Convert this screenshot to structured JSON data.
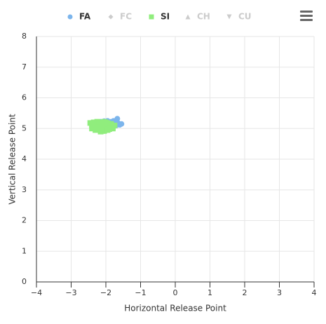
{
  "chart_data": {
    "type": "scatter",
    "x_label": "Horizontal Release Point",
    "y_label": "Vertical Release Point",
    "xlim": [
      -4,
      4
    ],
    "xticks": [
      {
        "value": -4,
        "label": "−4"
      },
      {
        "value": -3,
        "label": "−3"
      },
      {
        "value": -2,
        "label": "−2"
      },
      {
        "value": -1,
        "label": "−1"
      },
      0,
      1,
      2,
      3,
      4
    ],
    "ylim": [
      0,
      8
    ],
    "yticks": [
      0,
      1,
      2,
      3,
      4,
      5,
      6,
      7,
      8
    ],
    "grid": true,
    "series": [
      {
        "name": "FA",
        "color": "#7cb5ec",
        "symbol": "circle",
        "visible": true,
        "x": [
          -1.67,
          -1.55,
          -1.6,
          -1.75,
          -1.85,
          -1.95,
          -2.05,
          -2.15,
          -2.25,
          -2.35,
          -1.7,
          -1.8,
          -1.9,
          -2.0,
          -2.1,
          -2.2,
          -2.3,
          -1.65,
          -2.4,
          -1.78
        ],
        "values": [
          5.32,
          5.15,
          5.12,
          5.2,
          5.22,
          5.25,
          5.24,
          5.22,
          5.2,
          5.18,
          5.1,
          5.08,
          5.05,
          5.02,
          5.0,
          5.05,
          5.1,
          5.18,
          5.12,
          5.25
        ]
      },
      {
        "name": "FC",
        "color": "#cccccc",
        "symbol": "diamond",
        "visible": false,
        "x": [],
        "values": []
      },
      {
        "name": "SI",
        "color": "#90ed7d",
        "symbol": "square",
        "visible": true,
        "x": [
          -2.45,
          -2.4,
          -2.35,
          -2.3,
          -2.25,
          -2.2,
          -2.15,
          -2.1,
          -2.05,
          -2.0,
          -1.95,
          -1.9,
          -1.85,
          -1.8,
          -1.75,
          -2.4,
          -2.3,
          -2.2,
          -2.1,
          -2.0,
          -1.9,
          -1.8,
          -2.35,
          -2.25,
          -2.15,
          -2.05,
          -1.95,
          -1.85,
          -2.3,
          -2.2,
          -2.1,
          -2.0,
          -1.9,
          -2.15,
          -2.05,
          -2.25,
          -1.95
        ],
        "values": [
          5.18,
          5.1,
          5.05,
          5.12,
          5.0,
          5.08,
          5.15,
          5.02,
          5.1,
          5.05,
          5.12,
          5.08,
          5.15,
          5.05,
          5.1,
          5.0,
          4.95,
          4.98,
          4.92,
          4.95,
          4.98,
          5.0,
          5.2,
          5.22,
          5.2,
          5.22,
          5.18,
          5.1,
          5.15,
          5.18,
          5.12,
          5.2,
          5.02,
          4.9,
          4.92,
          5.05,
          4.95
        ]
      },
      {
        "name": "CH",
        "color": "#cccccc",
        "symbol": "triangle",
        "visible": false,
        "x": [],
        "values": []
      },
      {
        "name": "CU",
        "color": "#cccccc",
        "symbol": "triangle-down",
        "visible": false,
        "x": [],
        "values": []
      }
    ]
  }
}
